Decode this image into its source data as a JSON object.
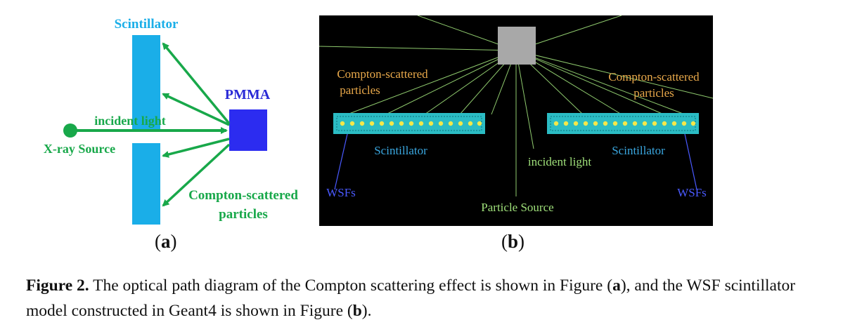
{
  "panel_a": {
    "scintillator_label": "Scintillator",
    "pmma_label": "PMMA",
    "incident_light_label": "incident light",
    "xray_source_label": "X-ray Source",
    "compton_line1": "Compton-scattered",
    "compton_line2": "particles",
    "sub_label": "a",
    "colors": {
      "scintillator": "#1aaee8",
      "pmma": "#2c2cf0",
      "arrows": "#18a84a",
      "pmma_text": "#2929d6"
    }
  },
  "panel_b": {
    "compton_left_line1": "Compton-scattered",
    "compton_left_line2": "particles",
    "compton_right_line1": "Compton-scattered",
    "compton_right_line2": "particles",
    "scintillator_left": "Scintillator",
    "scintillator_right": "Scintillator",
    "wsfs_left": "WSFs",
    "wsfs_right": "WSFs",
    "incident_light_label": "incident light",
    "particle_source_label": "Particle Source",
    "sub_label": "b",
    "colors": {
      "background": "#000000",
      "tracks": "#9fe07a",
      "slab": "#2bbcc4",
      "fiber": "#f4e84a",
      "orange_text": "#e8a84a",
      "blue_text": "#3aa7e0",
      "wsf_text": "#4a5aff"
    }
  },
  "caption": {
    "label": "Figure 2.",
    "text_before_a": " The optical path diagram of the Compton scattering effect is shown in Figure (",
    "a": "a",
    "text_mid": "), and the WSF scintillator model constructed in Geant4 is shown in Figure (",
    "b": "b",
    "text_end": ")."
  }
}
